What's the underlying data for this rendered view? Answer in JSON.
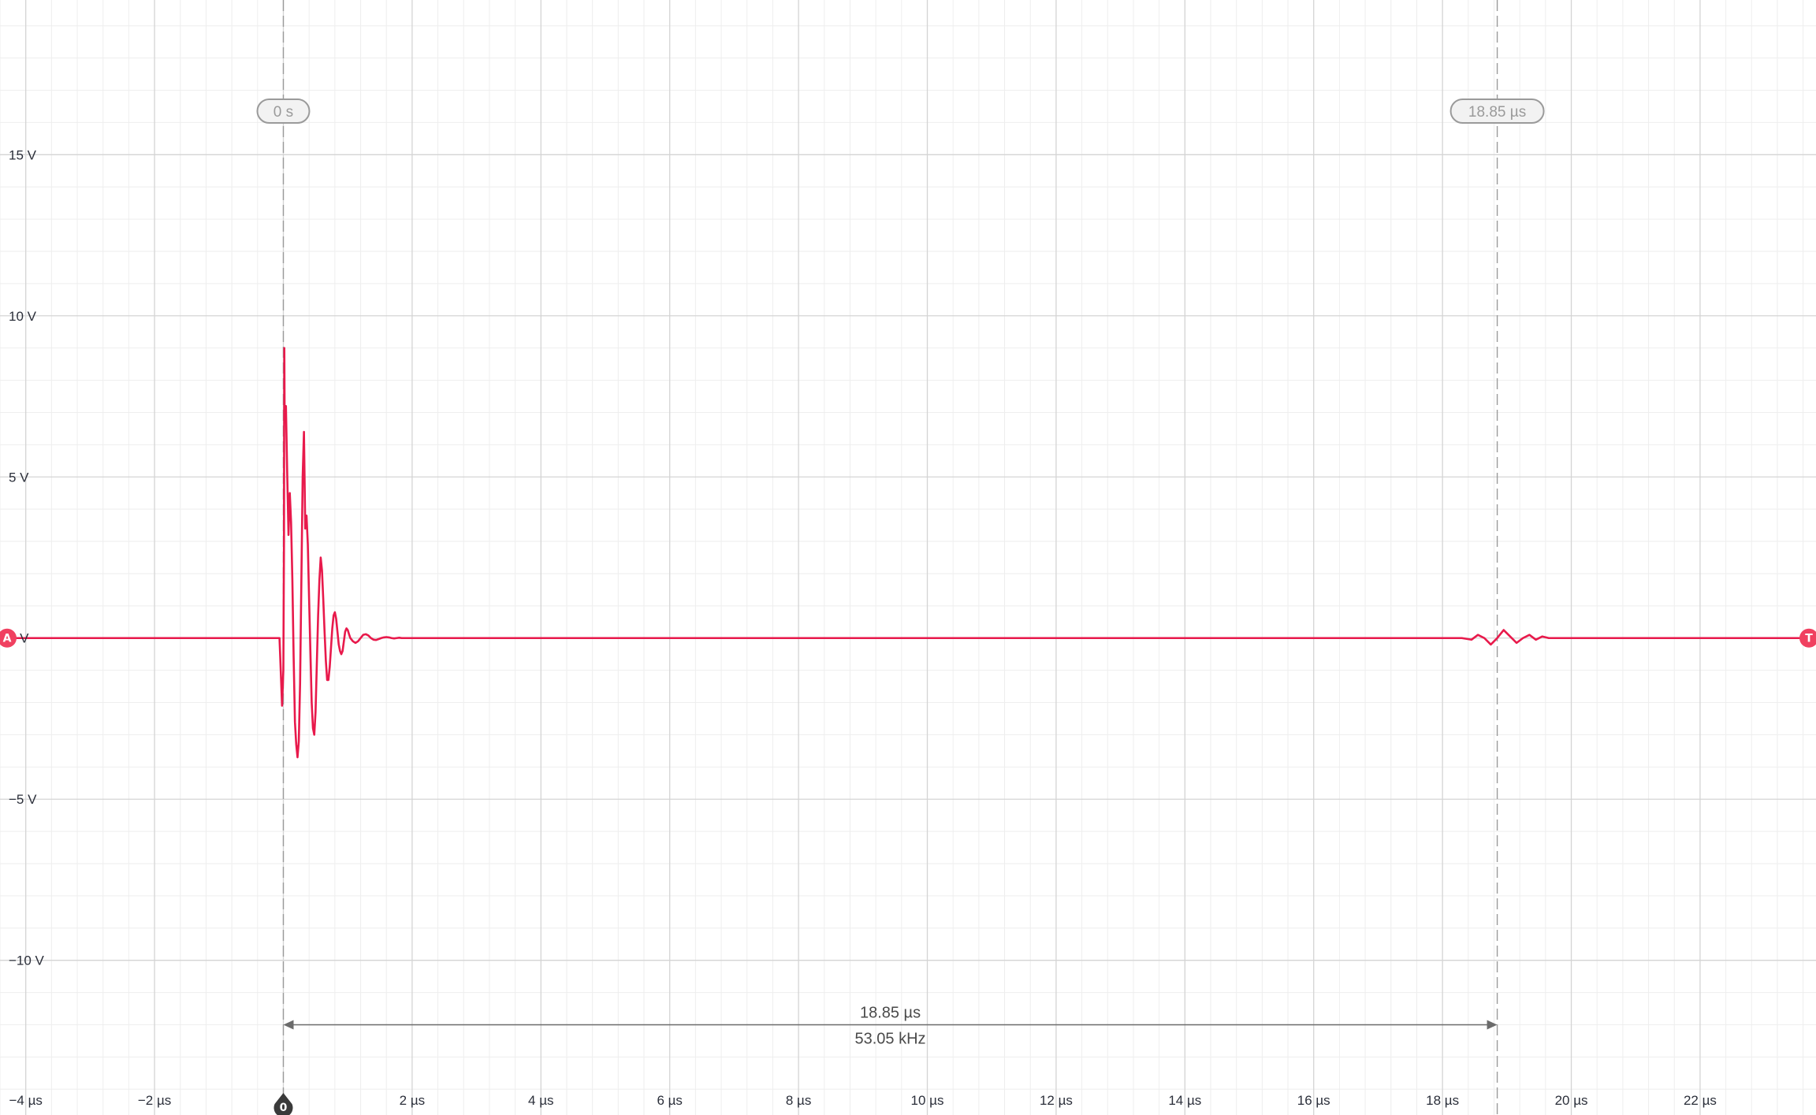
{
  "scope": {
    "x_axis": {
      "unit": "µs",
      "range": [
        -4.4,
        23.8
      ],
      "major_step": 2,
      "minor_step": 0.4,
      "tick_labels": [
        {
          "value": -4,
          "label": "−4 µs"
        },
        {
          "value": -2,
          "label": "−2 µs"
        },
        {
          "value": 2,
          "label": "2 µs"
        },
        {
          "value": 4,
          "label": "4 µs"
        },
        {
          "value": 6,
          "label": "6 µs"
        },
        {
          "value": 8,
          "label": "8 µs"
        },
        {
          "value": 10,
          "label": "10 µs"
        },
        {
          "value": 12,
          "label": "12 µs"
        },
        {
          "value": 14,
          "label": "14 µs"
        },
        {
          "value": 16,
          "label": "16 µs"
        },
        {
          "value": 18,
          "label": "18 µs"
        },
        {
          "value": 20,
          "label": "20 µs"
        },
        {
          "value": 22,
          "label": "22 µs"
        }
      ]
    },
    "y_axis": {
      "unit": "V",
      "range": [
        -14.8,
        19.8
      ],
      "major_step": 5,
      "minor_step": 1,
      "tick_labels": [
        {
          "value": 15,
          "label": "15 V"
        },
        {
          "value": 10,
          "label": "10 V"
        },
        {
          "value": 5,
          "label": "5 V"
        },
        {
          "value": 0,
          "label": "0 V"
        },
        {
          "value": -5,
          "label": "−5 V"
        },
        {
          "value": -10,
          "label": "−10 V"
        }
      ]
    },
    "cursors": [
      {
        "id": "cursor-a",
        "time_us": 0,
        "label": "0 s"
      },
      {
        "id": "cursor-b",
        "time_us": 18.85,
        "label": "18.85 µs"
      }
    ],
    "measurement": {
      "delta_time": "18.85 µs",
      "frequency": "53.05 kHz",
      "y_value": -12
    },
    "channel_marker": {
      "label": "A",
      "level_v": 0
    },
    "trigger_marker": {
      "label": "T",
      "level_v": 0
    },
    "trigger_time_marker": {
      "label": "0",
      "time_us": 0
    },
    "colors": {
      "trace": "#e8194b",
      "grid_minor": "#eeeeee",
      "grid_major": "#d4d4d4",
      "cursor_line": "#9a9a9a",
      "measure_line": "#6b6b6b",
      "marker_a": "#f04060",
      "marker_t": "#f04060",
      "trigger_time_marker": "#3a3a3a"
    }
  },
  "chart_data": {
    "type": "line",
    "xlabel": "",
    "ylabel": "",
    "xlim": [
      -4.4,
      23.8
    ],
    "ylim": [
      -14.8,
      19.8
    ],
    "grid": true,
    "series": [
      {
        "x": [
          -4.4,
          -0.06,
          -0.05,
          -0.02,
          0.0,
          0.01,
          0.015,
          0.02,
          0.04,
          0.06,
          0.08,
          0.1,
          0.12,
          0.14,
          0.16,
          0.18,
          0.2,
          0.22,
          0.24,
          0.26,
          0.28,
          0.3,
          0.32,
          0.34,
          0.36,
          0.38,
          0.4,
          0.42,
          0.44,
          0.46,
          0.48,
          0.5,
          0.52,
          0.54,
          0.56,
          0.58,
          0.6,
          0.62,
          0.64,
          0.66,
          0.68,
          0.7,
          0.72,
          0.74,
          0.76,
          0.78,
          0.8,
          0.82,
          0.84,
          0.86,
          0.88,
          0.9,
          0.92,
          0.94,
          0.96,
          0.98,
          1.0,
          1.02,
          1.04,
          1.08,
          1.12,
          1.16,
          1.2,
          1.24,
          1.28,
          1.32,
          1.36,
          1.4,
          1.44,
          1.48,
          1.52,
          1.56,
          1.6,
          1.64,
          1.68,
          1.72,
          1.76,
          1.8,
          1.84,
          18.3,
          18.45,
          18.55,
          18.65,
          18.75,
          18.85,
          18.95,
          19.05,
          19.15,
          19.25,
          19.35,
          19.45,
          19.55,
          19.65,
          23.8
        ],
        "y": [
          0,
          0,
          -0.5,
          -2.1,
          -1.0,
          3.0,
          9.0,
          6.8,
          7.2,
          5.1,
          3.2,
          4.5,
          3.6,
          1.8,
          -0.6,
          -2.6,
          -3.3,
          -3.7,
          -3.2,
          -1.4,
          1.8,
          5.0,
          6.4,
          3.4,
          3.8,
          2.9,
          1.2,
          -0.4,
          -2.0,
          -2.8,
          -3.0,
          -2.3,
          -0.8,
          0.7,
          1.8,
          2.5,
          2.1,
          1.2,
          0.2,
          -0.7,
          -1.3,
          -1.3,
          -0.9,
          -0.3,
          0.3,
          0.7,
          0.8,
          0.6,
          0.2,
          -0.2,
          -0.4,
          -0.5,
          -0.4,
          -0.1,
          0.2,
          0.3,
          0.25,
          0.12,
          0.0,
          -0.1,
          -0.15,
          -0.1,
          0.0,
          0.1,
          0.12,
          0.08,
          0.0,
          -0.05,
          -0.06,
          -0.03,
          0.0,
          0.02,
          0.03,
          0.02,
          0.0,
          -0.01,
          0.0,
          0.01,
          0.0,
          0.0,
          -0.05,
          0.1,
          0.0,
          -0.2,
          0.0,
          0.25,
          0.05,
          -0.15,
          0.0,
          0.1,
          -0.05,
          0.05,
          0.0,
          0.0
        ]
      }
    ]
  }
}
